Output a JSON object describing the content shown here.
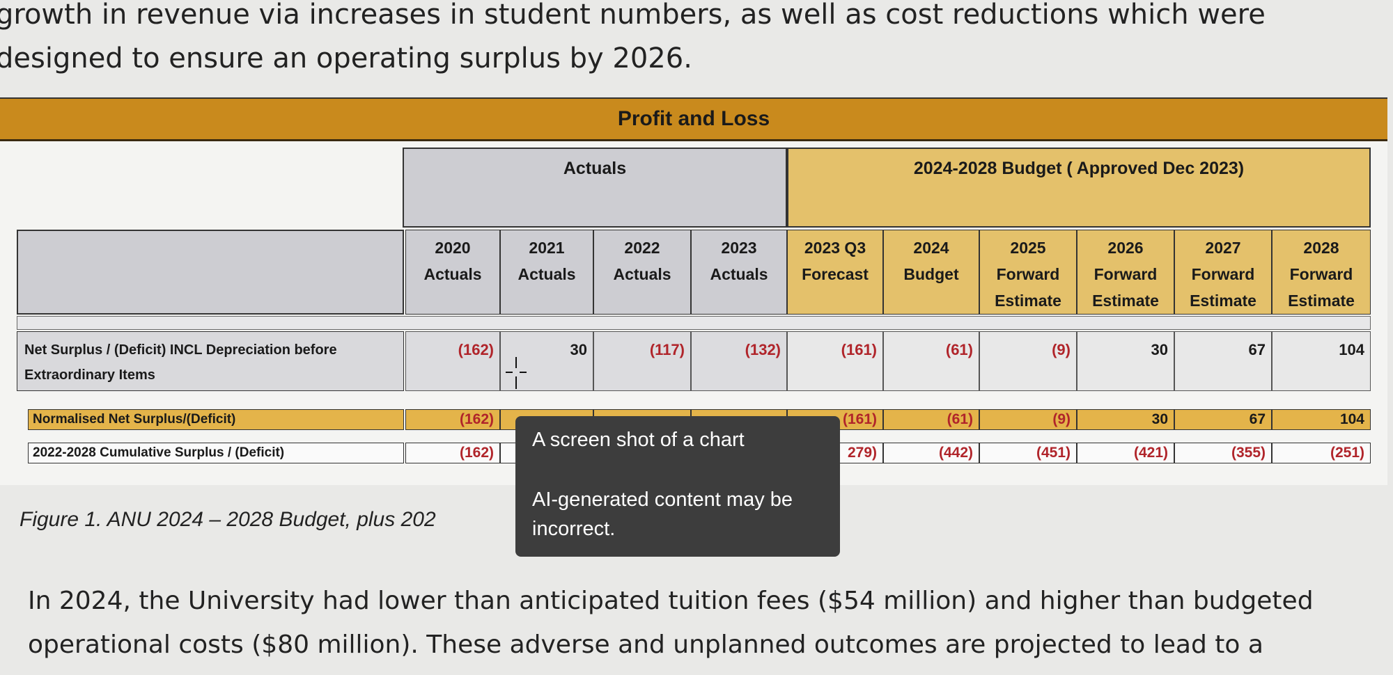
{
  "intro_text": "growth in revenue via increases in student numbers, as well as cost reductions which were designed to ensure an operating surplus by 2026.",
  "table": {
    "title": "Profit and Loss",
    "group_actuals": "Actuals",
    "group_budget": "2024-2028 Budget ( Approved Dec 2023)",
    "columns": [
      {
        "l1": "2020",
        "l2": "Actuals",
        "l3": ""
      },
      {
        "l1": "2021",
        "l2": "Actuals",
        "l3": ""
      },
      {
        "l1": "2022",
        "l2": "Actuals",
        "l3": ""
      },
      {
        "l1": "2023",
        "l2": "Actuals",
        "l3": ""
      },
      {
        "l1": "2023 Q3",
        "l2": "Forecast",
        "l3": ""
      },
      {
        "l1": "2024",
        "l2": "Budget",
        "l3": ""
      },
      {
        "l1": "2025",
        "l2": "Forward",
        "l3": "Estimate"
      },
      {
        "l1": "2026",
        "l2": "Forward",
        "l3": "Estimate"
      },
      {
        "l1": "2027",
        "l2": "Forward",
        "l3": "Estimate"
      },
      {
        "l1": "2028",
        "l2": "Forward",
        "l3": "Estimate"
      }
    ],
    "net_surplus": {
      "label_line1": "Net Surplus / (Deficit) INCL Depreciation before",
      "label_line2": "Extraordinary Items",
      "values": [
        "(162)",
        "30",
        "(117)",
        "(132)",
        "(161)",
        "(61)",
        "(9)",
        "30",
        "67",
        "104"
      ]
    },
    "normalised": {
      "label": "Normalised Net Surplus/(Deficit)",
      "values": [
        "(162)",
        "",
        "",
        "",
        "(161)",
        "(61)",
        "(9)",
        "30",
        "67",
        "104"
      ]
    },
    "cumulative": {
      "label": "2022-2028 Cumulative Surplus / (Deficit)",
      "values": [
        "(162)",
        "",
        "",
        "",
        "279)",
        "(442)",
        "(451)",
        "(421)",
        "(355)",
        "(251)"
      ]
    }
  },
  "caption": "Figure 1. ANU 2024 – 2028 Budget, plus 202",
  "tooltip": {
    "title": "A screen shot of a chart",
    "note": "AI-generated content may be incorrect."
  },
  "body_text": "In 2024, the University had lower than anticipated tuition fees ($54 million) and higher than budgeted operational costs ($80 million). These adverse and unplanned outcomes are projected to lead to a",
  "colors": {
    "title_bar": "#c98a1d",
    "budget_header": "#e4c16b",
    "actuals_header": "#cdcdd2",
    "normalised_row": "#e4b44a",
    "deficit_text": "#b0242a",
    "tooltip_bg": "#3d3d3d"
  }
}
